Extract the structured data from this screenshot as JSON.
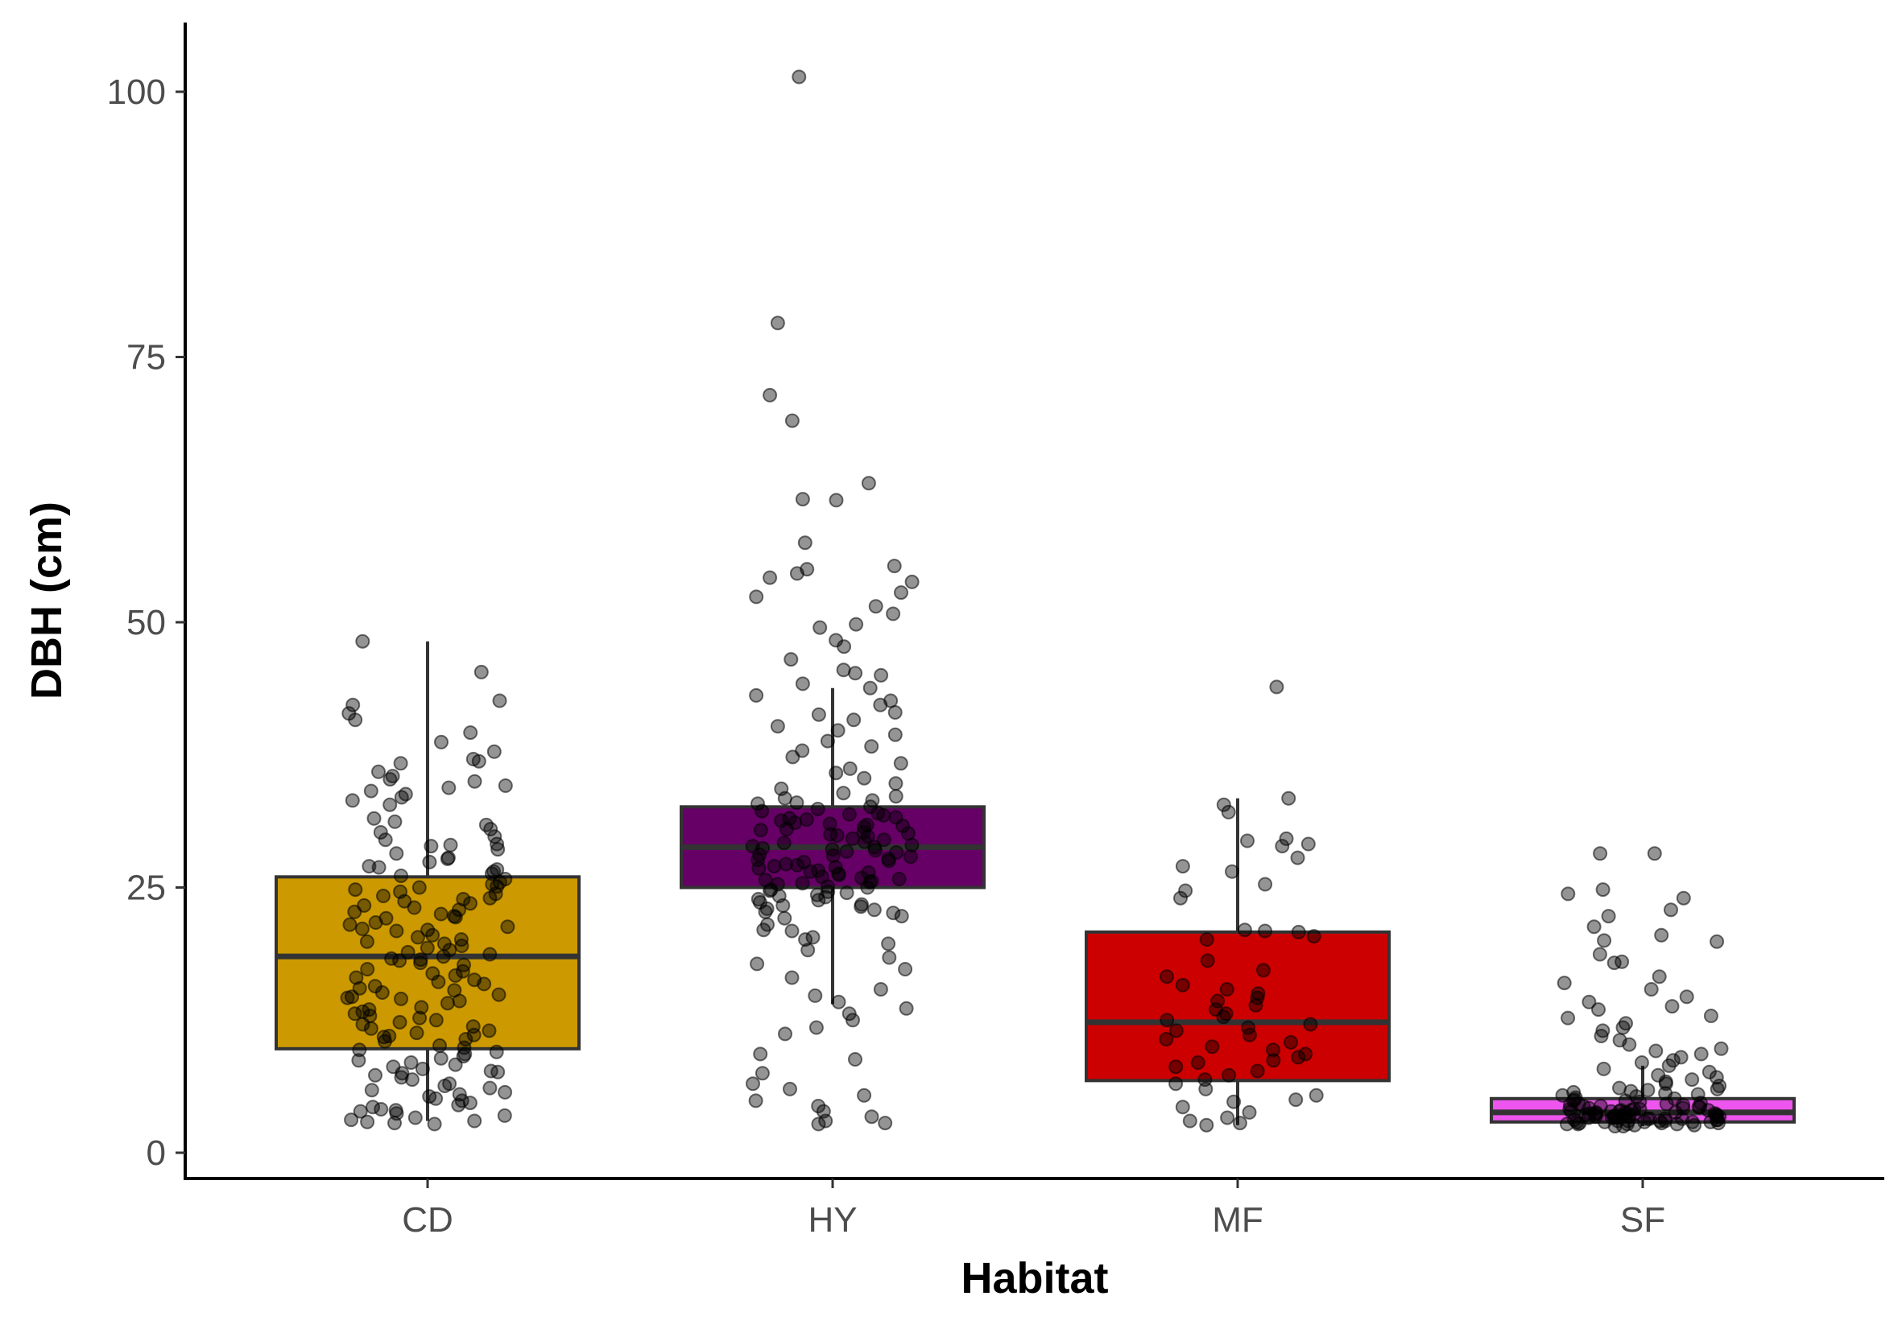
{
  "chart_data": {
    "type": "box",
    "xlabel": "Habitat",
    "ylabel": "DBH (cm)",
    "ylim": [
      -2.5,
      106
    ],
    "yticks": [
      0,
      25,
      50,
      75,
      100
    ],
    "grid": false,
    "legend": "none",
    "categories": [
      "CD",
      "HY",
      "MF",
      "SF"
    ],
    "boxes": [
      {
        "category": "CD",
        "fill": "#CC9900",
        "whisker_low": 3,
        "q1": 9.8,
        "median": 18.5,
        "q3": 26,
        "whisker_high": 48.2
      },
      {
        "category": "HY",
        "fill": "#660066",
        "whisker_low": 14,
        "q1": 25,
        "median": 28.8,
        "q3": 32.6,
        "whisker_high": 43.8
      },
      {
        "category": "MF",
        "fill": "#CC0000",
        "whisker_low": 2.6,
        "q1": 6.8,
        "median": 12.3,
        "q3": 20.8,
        "whisker_high": 33.4
      },
      {
        "category": "SF",
        "fill": "#EE55EE",
        "whisker_low": 2.5,
        "q1": 2.9,
        "median": 3.8,
        "q3": 5.1,
        "whisker_high": 8.2
      }
    ],
    "points": {
      "CD": [
        48.2,
        45.3,
        42.6,
        42.2,
        41.4,
        40.8,
        39.6,
        38.7,
        37.8,
        37.1,
        36.7,
        35.9,
        35.2,
        35.0,
        34.6,
        34.1,
        33.5,
        33.2,
        32.8,
        31.5,
        30.9,
        30.2,
        29.8,
        29.5,
        29.1,
        28.6,
        28.2,
        27.8,
        27.4,
        26.9,
        26.5,
        26.1,
        25.8,
        25.5,
        25.1,
        24.8,
        24.4,
        24.0,
        23.7,
        23.3,
        22.9,
        22.5,
        22.1,
        21.7,
        21.3,
        20.9,
        20.5,
        20.1,
        19.7,
        19.3,
        18.9,
        18.5,
        18.1,
        17.7,
        17.3,
        16.9,
        16.5,
        16.1,
        15.7,
        15.3,
        14.9,
        14.5,
        14.1,
        13.7,
        13.3,
        12.9,
        12.5,
        12.1,
        11.7,
        11.3,
        10.9,
        10.5,
        10.1,
        9.7,
        9.3,
        8.9,
        8.5,
        8.1,
        7.7,
        7.3,
        6.9,
        6.5,
        6.1,
        5.7,
        5.3,
        4.9,
        4.5,
        4.1,
        3.7,
        3.3,
        3.0,
        2.7,
        35.5,
        33.8,
        31.2,
        29.0,
        27.0,
        25.0,
        23.9,
        22.7,
        21.5,
        20.3,
        19.1,
        17.9,
        16.7,
        15.5,
        14.3,
        13.1,
        11.9,
        10.7,
        9.5,
        8.3,
        7.1,
        5.9,
        4.7,
        3.5,
        24.6,
        23.1,
        21.1,
        19.9,
        18.3,
        16.3,
        14.7,
        12.7,
        11.1,
        9.1,
        7.5,
        5.5,
        4.3,
        3.1,
        26.3,
        22.3,
        18.7,
        15.1,
        11.5,
        7.9,
        4.0,
        2.8,
        36.9,
        34.4,
        30.5,
        28.9,
        27.7,
        26.7,
        25.3,
        24.2,
        23.5,
        22.2,
        21.0,
        19.5,
        18.2,
        17.1,
        15.9,
        14.6,
        13.5,
        12.3,
        11.0,
        9.9,
        8.7,
        7.6,
        6.3,
        5.1,
        3.9,
        2.9
      ],
      "HY": [
        101.4,
        78.2,
        71.4,
        69.0,
        63.1,
        61.6,
        61.5,
        57.5,
        55.3,
        55.0,
        54.6,
        54.2,
        53.8,
        52.8,
        52.4,
        51.5,
        50.8,
        49.8,
        49.5,
        48.3,
        47.7,
        46.5,
        45.5,
        45.2,
        45.0,
        44.2,
        43.8,
        43.1,
        42.6,
        42.2,
        41.5,
        41.3,
        40.8,
        40.2,
        39.8,
        39.4,
        38.8,
        38.3,
        37.9,
        37.3,
        36.7,
        36.2,
        35.8,
        35.3,
        34.8,
        34.3,
        33.9,
        33.4,
        33.0,
        32.6,
        32.2,
        31.9,
        31.6,
        31.3,
        31.0,
        30.7,
        30.4,
        30.1,
        29.8,
        29.5,
        29.2,
        28.9,
        28.6,
        28.3,
        28.0,
        27.7,
        27.4,
        27.1,
        26.8,
        26.5,
        26.2,
        25.9,
        25.6,
        25.3,
        25.0,
        24.6,
        24.2,
        23.8,
        23.4,
        23.0,
        22.6,
        22.1,
        21.5,
        20.9,
        20.3,
        19.7,
        19.1,
        18.4,
        17.8,
        17.3,
        16.5,
        15.4,
        14.8,
        14.2,
        13.6,
        13.1,
        12.5,
        11.8,
        11.2,
        9.3,
        8.8,
        7.5,
        6.5,
        6.0,
        5.4,
        4.9,
        4.4,
        3.9,
        3.4,
        3.0,
        2.8,
        2.7,
        32.4,
        31.8,
        31.1,
        30.5,
        29.9,
        29.3,
        28.7,
        28.1,
        27.5,
        26.9,
        26.3,
        25.7,
        25.1,
        24.5,
        23.9,
        23.3,
        22.7,
        33.2,
        32.0,
        30.9,
        29.6,
        28.4,
        27.2,
        26.0,
        24.8,
        23.6,
        31.5,
        30.2,
        28.8,
        27.9,
        26.6,
        25.4,
        24.1,
        22.9,
        30.8,
        29.0,
        27.6,
        26.4,
        25.5,
        24.3,
        33.6,
        32.9,
        31.4,
        30.0,
        28.5,
        27.0,
        25.8,
        24.7,
        23.2,
        22.3,
        21.0,
        20.1
      ],
      "MF": [
        43.9,
        33.4,
        32.8,
        32.1,
        29.6,
        29.4,
        29.1,
        28.9,
        27.8,
        27.0,
        26.5,
        25.3,
        24.7,
        24.0,
        21.0,
        20.9,
        20.8,
        20.4,
        20.1,
        18.1,
        17.2,
        16.6,
        15.8,
        15.4,
        15.0,
        14.6,
        14.3,
        13.9,
        13.5,
        13.1,
        12.8,
        12.5,
        12.1,
        11.8,
        11.5,
        11.1,
        10.7,
        10.4,
        10.0,
        9.7,
        9.3,
        9.0,
        8.7,
        8.5,
        8.1,
        7.7,
        7.3,
        6.9,
        6.5,
        6.0,
        5.4,
        5.0,
        4.8,
        4.3,
        3.8,
        3.3,
        3.0,
        2.8,
        2.6
      ],
      "SF": [
        28.2,
        28.2,
        24.8,
        24.4,
        24.0,
        22.9,
        22.3,
        21.3,
        20.5,
        20.0,
        19.9,
        18.7,
        18.0,
        17.9,
        16.6,
        16.0,
        15.4,
        14.7,
        14.2,
        13.8,
        13.5,
        12.9,
        12.7,
        12.2,
        11.8,
        11.5,
        11.0,
        10.6,
        10.2,
        9.8,
        9.6,
        9.3,
        9.0,
        8.7,
        8.5,
        8.2,
        7.9,
        7.6,
        7.3,
        7.1,
        6.9,
        6.7,
        6.5,
        6.3,
        6.1,
        5.9,
        5.7,
        5.5,
        5.3,
        5.1,
        4.9,
        4.7,
        4.5,
        4.3,
        4.1,
        3.9,
        3.7,
        3.5,
        3.3,
        3.1,
        2.9,
        2.7,
        2.5,
        6.0,
        5.6,
        5.2,
        4.8,
        4.4,
        4.0,
        3.6,
        3.2,
        2.8,
        5.8,
        5.0,
        4.2,
        3.4,
        2.6,
        5.4,
        4.6,
        3.8,
        3.0,
        4.9,
        4.1,
        3.3,
        2.7,
        4.5,
        3.7,
        2.9,
        4.0,
        3.2,
        4.4,
        3.6,
        2.8,
        3.9,
        3.1,
        4.3,
        3.5,
        2.6,
        3.8,
        3.0,
        4.2,
        3.4,
        2.7,
        3.7,
        2.9,
        4.6,
        3.3,
        2.5,
        3.6,
        3.0,
        4.1,
        3.4,
        2.8,
        3.9,
        3.2,
        3.7,
        2.9,
        4.0,
        3.5,
        3.1,
        3.8,
        2.7,
        3.3,
        3.6,
        3.0,
        3.4,
        2.9,
        3.2
      ]
    }
  }
}
